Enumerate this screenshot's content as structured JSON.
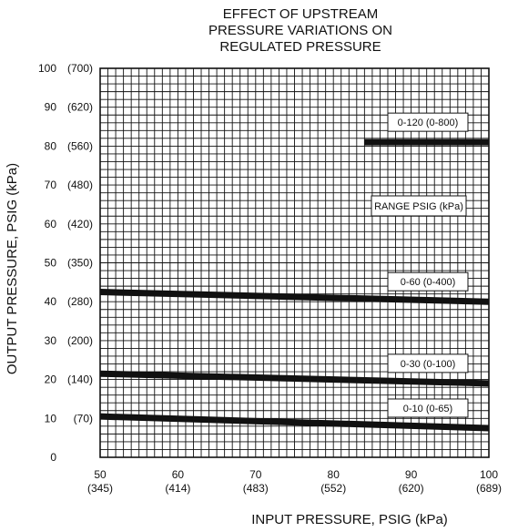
{
  "chart_data": {
    "type": "line",
    "title": [
      "EFFECT OF UPSTREAM",
      "PRESSURE VARIATIONS ON",
      "REGULATED PRESSURE"
    ],
    "xlabel": "INPUT PRESSURE, PSIG (kPa)",
    "ylabel": "OUTPUT PRESSURE, PSIG (kPa)",
    "xlim": [
      50,
      100
    ],
    "ylim": [
      0,
      100
    ],
    "grid": true,
    "x_ticks": [
      {
        "value": 50,
        "label": "50",
        "sublabel": "(345)"
      },
      {
        "value": 60,
        "label": "60",
        "sublabel": "(414)"
      },
      {
        "value": 70,
        "label": "70",
        "sublabel": "(483)"
      },
      {
        "value": 80,
        "label": "80",
        "sublabel": "(552)"
      },
      {
        "value": 90,
        "label": "90",
        "sublabel": "(620)"
      },
      {
        "value": 100,
        "label": "100",
        "sublabel": "(689)"
      }
    ],
    "y_ticks": [
      {
        "value": 0,
        "label": "0",
        "sublabel": ""
      },
      {
        "value": 10,
        "label": "10",
        "sublabel": "(70)"
      },
      {
        "value": 20,
        "label": "20",
        "sublabel": "(140)"
      },
      {
        "value": 30,
        "label": "30",
        "sublabel": "(200)"
      },
      {
        "value": 40,
        "label": "40",
        "sublabel": "(280)"
      },
      {
        "value": 50,
        "label": "50",
        "sublabel": "(350)"
      },
      {
        "value": 60,
        "label": "60",
        "sublabel": "(420)"
      },
      {
        "value": 70,
        "label": "70",
        "sublabel": "(480)"
      },
      {
        "value": 80,
        "label": "80",
        "sublabel": "(560)"
      },
      {
        "value": 90,
        "label": "90",
        "sublabel": "(620)"
      },
      {
        "value": 100,
        "label": "100",
        "sublabel": "(700)"
      }
    ],
    "range_heading": "RANGE PSIG (kPa)",
    "series": [
      {
        "name": "0-120 (0-800)",
        "x": [
          84,
          100
        ],
        "y": [
          81,
          81
        ]
      },
      {
        "name": "0-60 (0-400)",
        "x": [
          50,
          100
        ],
        "y": [
          42.5,
          40
        ]
      },
      {
        "name": "0-30 (0-100)",
        "x": [
          50,
          100
        ],
        "y": [
          21.5,
          19
        ]
      },
      {
        "name": "0-10 (0-65)",
        "x": [
          50,
          100
        ],
        "y": [
          10.5,
          7.5
        ]
      }
    ]
  }
}
